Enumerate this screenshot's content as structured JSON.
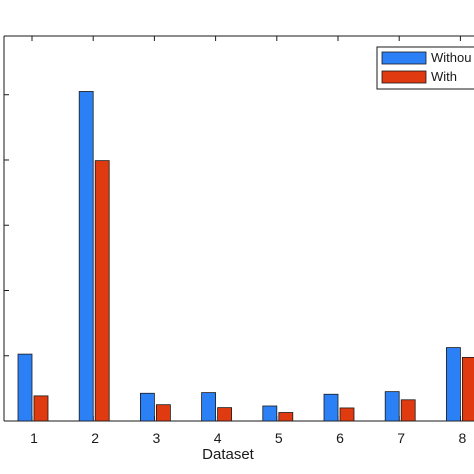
{
  "chart_data": {
    "type": "bar",
    "categories": [
      "1",
      "2",
      "3",
      "4",
      "5",
      "6",
      "7",
      "8"
    ],
    "series": [
      {
        "name": "Withou",
        "color": "#2b80f5",
        "values": [
          20.5,
          101,
          8.5,
          8.7,
          4.6,
          8.2,
          9.0,
          22.5
        ]
      },
      {
        "name": "With",
        "color": "#e03a10",
        "values": [
          7.7,
          79.8,
          5.0,
          4.1,
          2.6,
          4.0,
          6.5,
          19.5
        ]
      }
    ],
    "xlabel": "Dataset",
    "ylabel": "",
    "ylim": [
      0,
      118
    ],
    "yticks": [
      0,
      20,
      40,
      60,
      80,
      100
    ],
    "grid": false,
    "legend_position": "top-right"
  }
}
